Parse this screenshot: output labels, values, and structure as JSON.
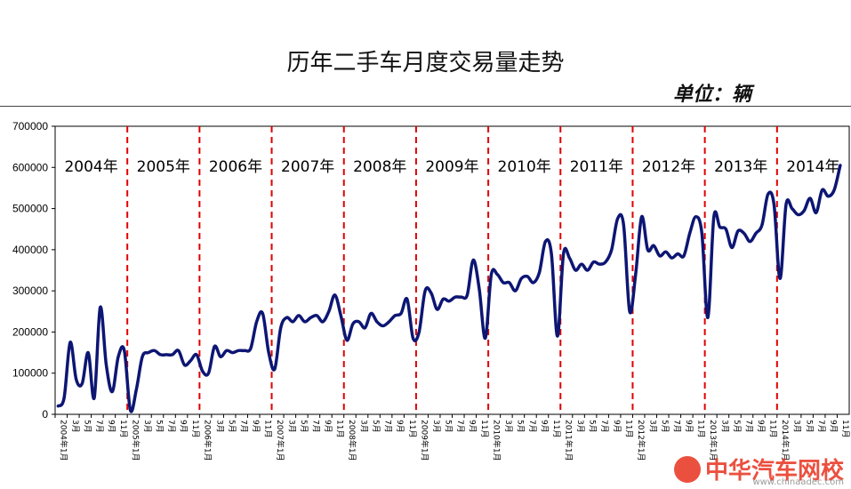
{
  "header": {
    "title": "历年二手车月度交易量走势",
    "unit": "单位：辆"
  },
  "watermark": {
    "text": "中华汽车网校",
    "url": "www.chinaadec.com"
  },
  "colors": {
    "line": "#0d1673",
    "divider": "#e00000",
    "axis": "#000000"
  },
  "chart_data": {
    "type": "line",
    "ylim": [
      0,
      700000
    ],
    "yticks": [
      "0",
      "100000",
      "200000",
      "300000",
      "400000",
      "500000",
      "600000",
      "700000"
    ],
    "xtick_labels": [
      "2004年1月",
      "3月",
      "5月",
      "7月",
      "9月",
      "11月",
      "2005年1月",
      "3月",
      "5月",
      "7月",
      "9月",
      "11月",
      "2006年1月",
      "3月",
      "5月",
      "7月",
      "9月",
      "11月",
      "2007年1月",
      "3月",
      "5月",
      "7月",
      "9月",
      "11月",
      "2008年1月",
      "3月",
      "5月",
      "7月",
      "9月",
      "11月",
      "2009年1月",
      "3月",
      "5月",
      "7月",
      "9月",
      "11月",
      "2010年1月",
      "3月",
      "5月",
      "7月",
      "9月",
      "11月",
      "2011年1月",
      "3月",
      "5月",
      "7月",
      "9月",
      "11月",
      "2012年1月",
      "3月",
      "5月",
      "7月",
      "9月",
      "11月",
      "2013年1月",
      "3月",
      "5月",
      "7月",
      "9月",
      "11月",
      "2014年1月",
      "3月",
      "5月",
      "7月",
      "9月",
      "11月"
    ],
    "year_labels": [
      "2004年",
      "2005年",
      "2006年",
      "2007年",
      "2008年",
      "2009年",
      "2010年",
      "2011年",
      "2012年",
      "2013年",
      "2014年"
    ],
    "values": [
      20000,
      40000,
      175000,
      85000,
      75000,
      150000,
      40000,
      260000,
      120000,
      55000,
      140000,
      155000,
      10000,
      60000,
      140000,
      150000,
      155000,
      145000,
      145000,
      145000,
      155000,
      120000,
      130000,
      145000,
      105000,
      100000,
      165000,
      140000,
      155000,
      150000,
      155000,
      155000,
      160000,
      225000,
      245000,
      150000,
      110000,
      210000,
      235000,
      225000,
      240000,
      225000,
      235000,
      240000,
      225000,
      250000,
      290000,
      240000,
      180000,
      220000,
      225000,
      210000,
      245000,
      225000,
      215000,
      225000,
      240000,
      245000,
      280000,
      185000,
      200000,
      300000,
      295000,
      255000,
      280000,
      275000,
      285000,
      285000,
      290000,
      375000,
      305000,
      185000,
      340000,
      340000,
      320000,
      320000,
      300000,
      330000,
      335000,
      320000,
      345000,
      420000,
      390000,
      190000,
      390000,
      380000,
      350000,
      365000,
      350000,
      370000,
      365000,
      370000,
      400000,
      475000,
      460000,
      250000,
      340000,
      480000,
      400000,
      410000,
      385000,
      395000,
      380000,
      390000,
      385000,
      440000,
      480000,
      440000,
      235000,
      480000,
      455000,
      450000,
      405000,
      445000,
      440000,
      420000,
      440000,
      460000,
      535000,
      510000,
      330000,
      510000,
      500000,
      485000,
      495000,
      525000,
      490000,
      545000,
      530000,
      545000,
      605000
    ]
  }
}
